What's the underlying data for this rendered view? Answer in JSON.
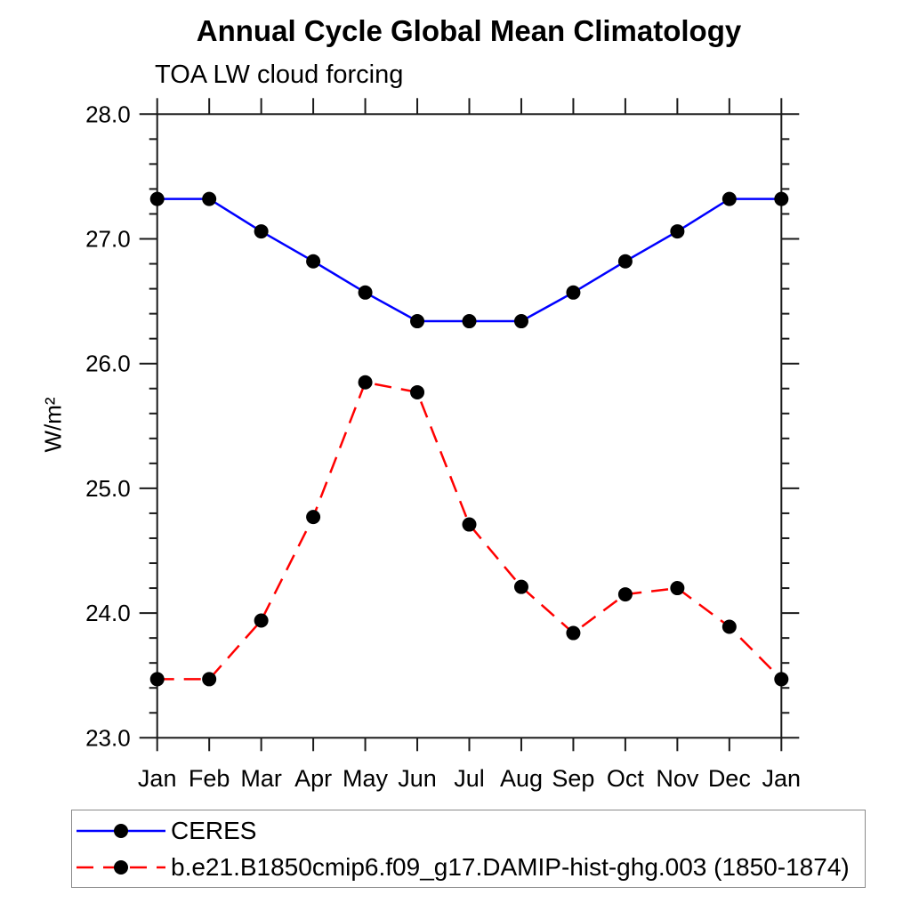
{
  "header": {
    "title": "Annual Cycle Global Mean Climatology",
    "subtitle": "TOA LW cloud forcing"
  },
  "chart_data": {
    "type": "line",
    "title": "Annual Cycle Global Mean Climatology",
    "subtitle": "TOA LW cloud forcing",
    "xlabel": "",
    "ylabel": "W/m²",
    "categories": [
      "Jan",
      "Feb",
      "Mar",
      "Apr",
      "May",
      "Jun",
      "Jul",
      "Aug",
      "Sep",
      "Oct",
      "Nov",
      "Dec",
      "Jan"
    ],
    "ylim": [
      23.0,
      28.0
    ],
    "yticks": [
      23.0,
      24.0,
      25.0,
      26.0,
      27.0,
      28.0
    ],
    "ytick_labels": [
      "23.0",
      "24.0",
      "25.0",
      "26.0",
      "27.0",
      "28.0"
    ],
    "y_minor_tick_interval": 0.2,
    "grid": false,
    "legend_position": "bottom-left-box",
    "axis_color": "#1a1a1a",
    "marker_color": "#000000",
    "series": [
      {
        "name": "CERES",
        "color": "#0000ff",
        "style": "solid",
        "marker": "circle",
        "values": [
          27.32,
          27.32,
          27.06,
          26.82,
          26.57,
          26.34,
          26.34,
          26.34,
          26.57,
          26.82,
          27.06,
          27.32,
          27.32
        ]
      },
      {
        "name": "b.e21.B1850cmip6.f09_g17.DAMIP-hist-ghg.003 (1850-1874)",
        "color": "#ff0000",
        "style": "dashed",
        "marker": "circle",
        "values": [
          23.47,
          23.47,
          23.94,
          24.77,
          25.85,
          25.77,
          24.71,
          24.21,
          23.84,
          24.15,
          24.2,
          23.89,
          23.47
        ]
      }
    ]
  }
}
